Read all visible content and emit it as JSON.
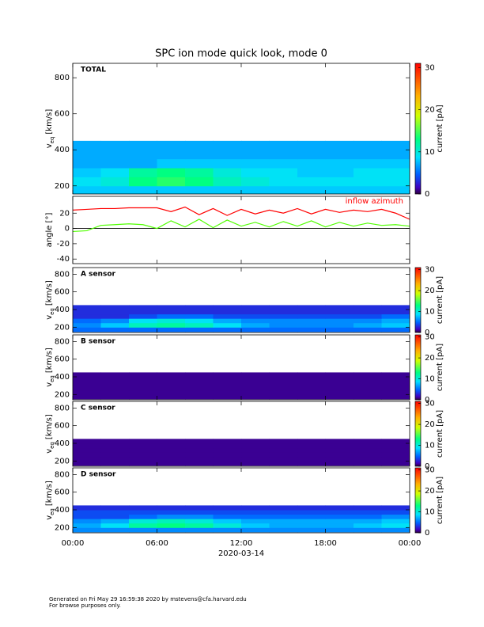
{
  "title": "SPC ion mode quick look, mode 0",
  "chart_data": [
    {
      "type": "heatmap",
      "label": "TOTAL",
      "ylabel": {
        "main": "v",
        "sub": "eq",
        "unit": "[km/s]"
      },
      "xlim": [
        0,
        24
      ],
      "ylim": [
        155,
        880
      ],
      "yticks": [
        200,
        400,
        600,
        800
      ],
      "x_bins": [
        0,
        2,
        4,
        6,
        8,
        10,
        12,
        14,
        16,
        18,
        20,
        22,
        24
      ],
      "y_bins": [
        150,
        200,
        250,
        300,
        350,
        400,
        450
      ],
      "values": [
        [
          8,
          8,
          8,
          8,
          8,
          8,
          8,
          8,
          8,
          8,
          8,
          8
        ],
        [
          9,
          10,
          13,
          14,
          13,
          11,
          10,
          9,
          9,
          9,
          9,
          9
        ],
        [
          8,
          9,
          12,
          13,
          12,
          10,
          9,
          9,
          8,
          8,
          9,
          9
        ],
        [
          7,
          7,
          7,
          8,
          8,
          8,
          8,
          8,
          8,
          8,
          8,
          8
        ],
        [
          7,
          7,
          7,
          7,
          7,
          7,
          7,
          7,
          7,
          7,
          7,
          7
        ],
        [
          7,
          7,
          7,
          7,
          7,
          7,
          7,
          7,
          7,
          7,
          7,
          7
        ]
      ],
      "colorbar": {
        "label": "current [pA]",
        "lim": [
          0,
          31
        ],
        "ticks": [
          0,
          10,
          20,
          30
        ]
      }
    },
    {
      "type": "line",
      "ylabel": "angle [°]",
      "xlim": [
        0,
        24
      ],
      "ylim": [
        -46,
        42
      ],
      "yticks": [
        -40,
        -20,
        0,
        20
      ],
      "x": [
        0,
        1,
        2,
        3,
        4,
        5,
        6,
        7,
        8,
        9,
        10,
        11,
        12,
        13,
        14,
        15,
        16,
        17,
        18,
        19,
        20,
        21,
        22,
        23,
        24
      ],
      "series": [
        {
          "name": "inflow azimuth",
          "color": "#ff0000",
          "values": [
            24,
            25,
            26,
            26,
            27,
            27,
            27,
            22,
            28,
            18,
            26,
            17,
            25,
            19,
            24,
            20,
            26,
            19,
            25,
            21,
            24,
            22,
            25,
            20,
            12
          ]
        },
        {
          "color": "#50ff00",
          "values": [
            -4,
            -3,
            4,
            5,
            6,
            5,
            0,
            10,
            2,
            12,
            1,
            11,
            3,
            8,
            2,
            9,
            3,
            10,
            2,
            8,
            3,
            7,
            4,
            5,
            3
          ]
        }
      ]
    },
    {
      "type": "heatmap",
      "label": "A sensor",
      "ylabel": {
        "main": "v",
        "sub": "eq",
        "unit": "[km/s]"
      },
      "xlim": [
        0,
        24
      ],
      "ylim": [
        140,
        875
      ],
      "yticks": [
        200,
        400,
        600,
        800
      ],
      "x_bins": [
        0,
        2,
        4,
        6,
        8,
        10,
        12,
        14,
        16,
        18,
        20,
        22,
        24
      ],
      "y_bins": [
        150,
        200,
        250,
        300,
        350,
        400,
        450
      ],
      "values": [
        [
          5,
          5,
          5,
          5,
          5,
          5,
          5,
          5,
          5,
          5,
          5,
          5
        ],
        [
          6,
          8,
          11,
          12,
          11,
          9,
          7,
          6,
          6,
          6,
          7,
          8
        ],
        [
          5,
          6,
          9,
          10,
          9,
          7,
          6,
          6,
          6,
          6,
          6,
          7
        ],
        [
          3,
          3,
          4,
          5,
          5,
          4,
          4,
          4,
          4,
          4,
          4,
          5
        ],
        [
          3,
          3,
          3,
          3,
          3,
          3,
          3,
          3,
          3,
          3,
          3,
          3
        ],
        [
          3,
          3,
          3,
          3,
          3,
          3,
          3,
          3,
          3,
          3,
          3,
          3
        ]
      ],
      "colorbar": {
        "label": "current [pA]",
        "lim": [
          0,
          31
        ],
        "ticks": [
          0,
          10,
          20,
          30
        ]
      }
    },
    {
      "type": "heatmap",
      "label": "B sensor",
      "ylabel": {
        "main": "v",
        "sub": "eq",
        "unit": "[km/s]"
      },
      "xlim": [
        0,
        24
      ],
      "ylim": [
        140,
        875
      ],
      "yticks": [
        200,
        400,
        600,
        800
      ],
      "x_bins": [
        0,
        2,
        4,
        6,
        8,
        10,
        12,
        14,
        16,
        18,
        20,
        22,
        24
      ],
      "y_bins": [
        150,
        200,
        250,
        300,
        350,
        400,
        450
      ],
      "values": [
        [
          1,
          1,
          1,
          1,
          1,
          1,
          1,
          1,
          1,
          1,
          1,
          1
        ],
        [
          1,
          1,
          1,
          1,
          1,
          1,
          1,
          1,
          1,
          1,
          1,
          1
        ],
        [
          1,
          1,
          1,
          1,
          1,
          1,
          1,
          1,
          1,
          1,
          1,
          1
        ],
        [
          1,
          1,
          1,
          1,
          1,
          1,
          1,
          1,
          1,
          1,
          1,
          1
        ],
        [
          1,
          1,
          1,
          1,
          1,
          1,
          1,
          1,
          1,
          1,
          1,
          1
        ],
        [
          1,
          1,
          1,
          1,
          1,
          1,
          1,
          1,
          1,
          1,
          1,
          1
        ]
      ],
      "colorbar": {
        "label": "current [pA]",
        "lim": [
          0,
          31
        ],
        "ticks": [
          0,
          10,
          20,
          30
        ]
      }
    },
    {
      "type": "heatmap",
      "label": "C sensor",
      "ylabel": {
        "main": "v",
        "sub": "eq",
        "unit": "[km/s]"
      },
      "xlim": [
        0,
        24
      ],
      "ylim": [
        140,
        875
      ],
      "yticks": [
        200,
        400,
        600,
        800
      ],
      "x_bins": [
        0,
        2,
        4,
        6,
        8,
        10,
        12,
        14,
        16,
        18,
        20,
        22,
        24
      ],
      "y_bins": [
        150,
        200,
        250,
        300,
        350,
        400,
        450
      ],
      "values": [
        [
          1,
          1,
          1,
          1,
          1,
          1,
          1,
          1,
          1,
          1,
          1,
          1
        ],
        [
          1,
          1,
          1,
          1,
          1,
          1,
          1,
          1,
          1,
          1,
          1,
          1
        ],
        [
          1,
          1,
          1,
          1,
          1,
          1,
          1,
          1,
          1,
          1,
          1,
          1
        ],
        [
          1,
          1,
          1,
          1,
          1,
          1,
          1,
          1,
          1,
          1,
          1,
          1
        ],
        [
          1,
          1,
          1,
          1,
          1,
          1,
          1,
          1,
          1,
          1,
          1,
          1
        ],
        [
          1,
          1,
          1,
          1,
          1,
          1,
          1,
          1,
          1,
          1,
          1,
          1
        ]
      ],
      "colorbar": {
        "label": "current [pA]",
        "lim": [
          0,
          31
        ],
        "ticks": [
          0,
          10,
          20,
          30
        ]
      }
    },
    {
      "type": "heatmap",
      "label": "D sensor",
      "ylabel": {
        "main": "v",
        "sub": "eq",
        "unit": "[km/s]"
      },
      "xlim": [
        0,
        24
      ],
      "ylim": [
        140,
        875
      ],
      "yticks": [
        200,
        400,
        600,
        800
      ],
      "xticks": [
        {
          "value": 0,
          "label": "00:00"
        },
        {
          "value": 6,
          "label": "06:00"
        },
        {
          "value": 12,
          "label": "12:00"
        },
        {
          "value": 18,
          "label": "18:00"
        },
        {
          "value": 24,
          "label": "00:00"
        }
      ],
      "xlabel": "2020-03-14",
      "x_bins": [
        0,
        2,
        4,
        6,
        8,
        10,
        12,
        14,
        16,
        18,
        20,
        22,
        24
      ],
      "y_bins": [
        150,
        200,
        250,
        300,
        350,
        400,
        450
      ],
      "values": [
        [
          6,
          6,
          6,
          6,
          6,
          6,
          6,
          6,
          6,
          6,
          6,
          6
        ],
        [
          7,
          9,
          12,
          13,
          12,
          10,
          8,
          7,
          7,
          7,
          8,
          9
        ],
        [
          6,
          7,
          10,
          11,
          10,
          8,
          7,
          7,
          7,
          7,
          7,
          8
        ],
        [
          4,
          4,
          5,
          6,
          6,
          5,
          5,
          5,
          5,
          5,
          5,
          6
        ],
        [
          4,
          4,
          4,
          4,
          4,
          4,
          4,
          4,
          4,
          4,
          4,
          4
        ],
        [
          3,
          3,
          3,
          3,
          3,
          3,
          3,
          3,
          3,
          3,
          3,
          3
        ]
      ],
      "colorbar": {
        "label": "current [pA]",
        "lim": [
          0,
          31
        ],
        "ticks": [
          0,
          10,
          20,
          30
        ]
      }
    }
  ],
  "footer": [
    "Generated on Fri May 29 16:59:38 2020 by mstevens@cfa.harvard.edu",
    "For browse purposes only."
  ]
}
